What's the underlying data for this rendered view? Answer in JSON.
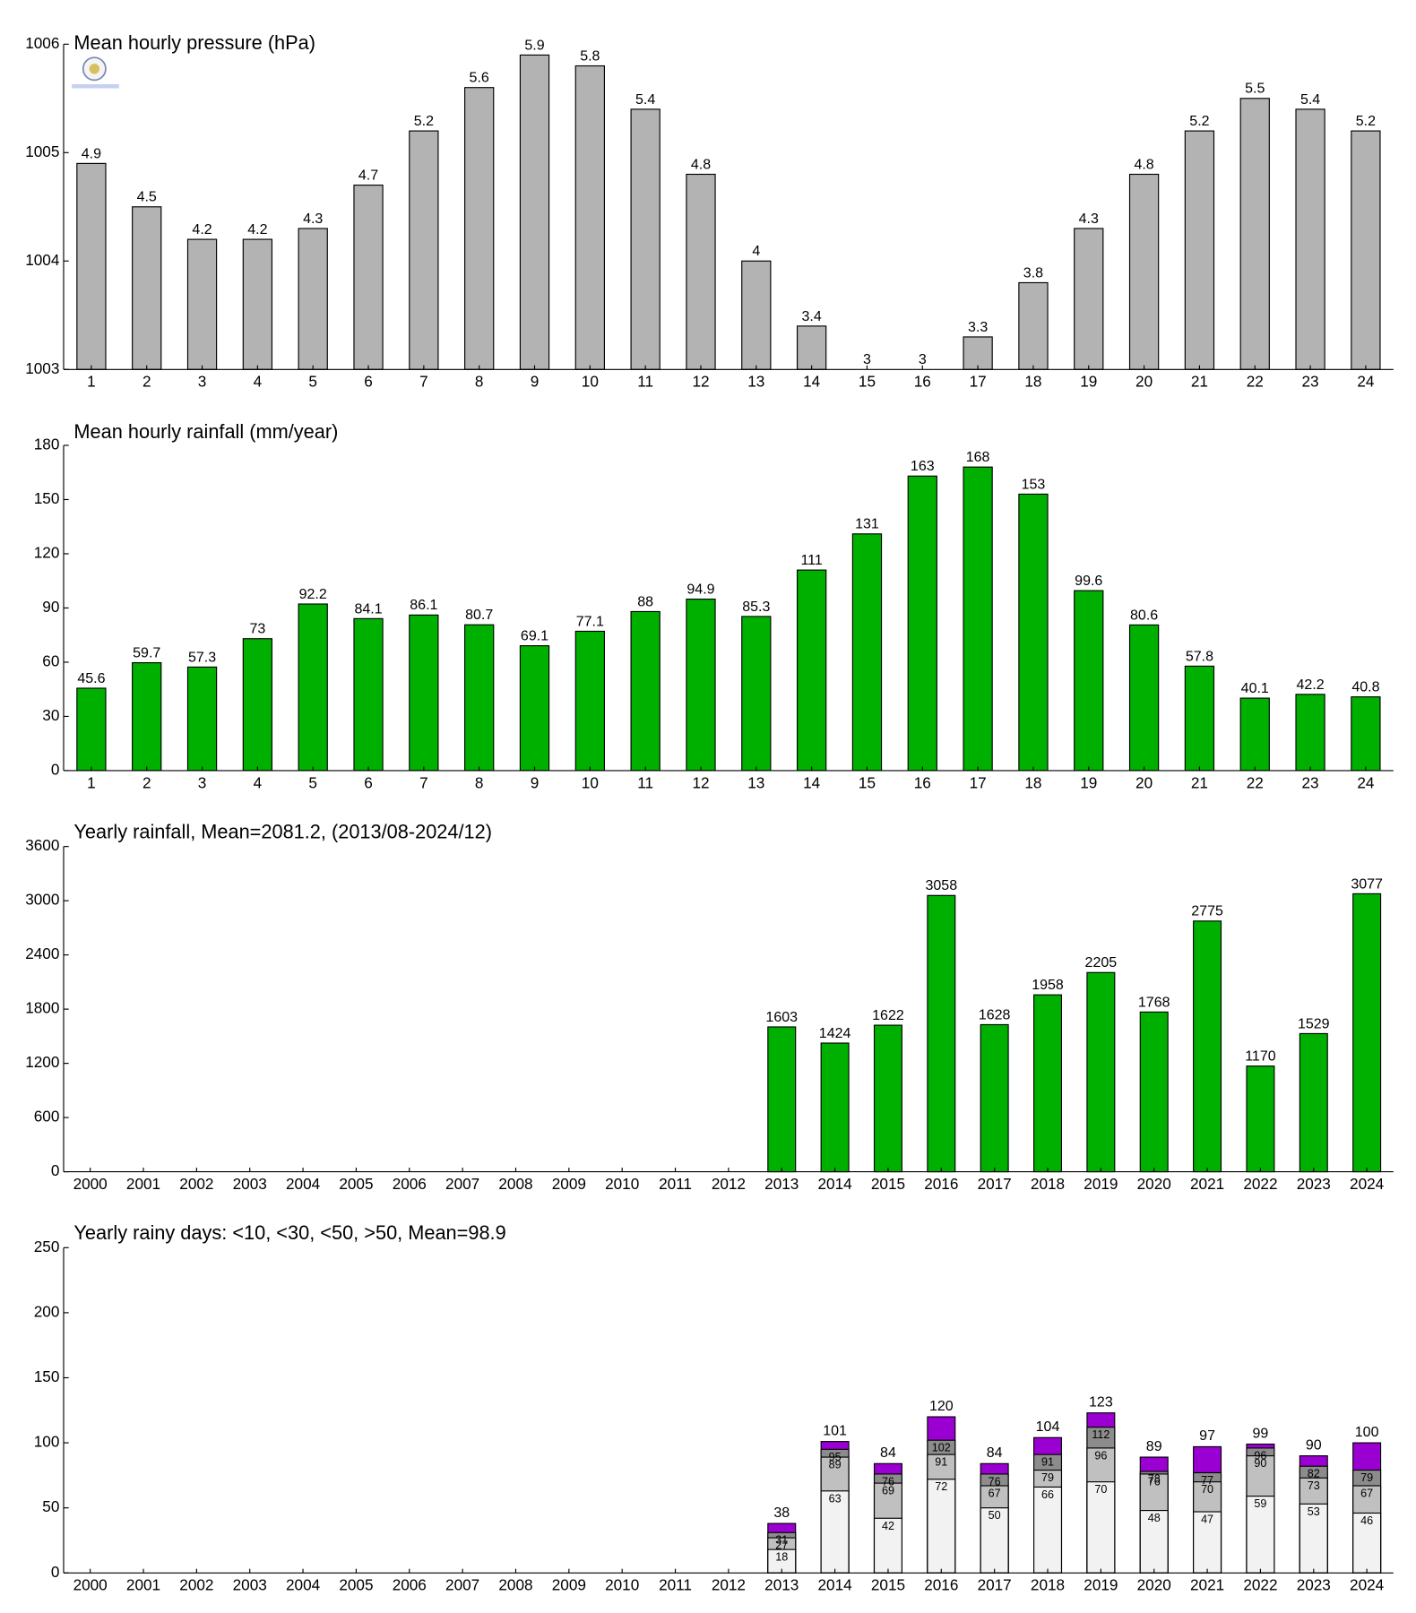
{
  "chart_data": [
    {
      "type": "bar",
      "title": "Mean hourly pressure (hPa)",
      "categories": [
        "1",
        "2",
        "3",
        "4",
        "5",
        "6",
        "7",
        "8",
        "9",
        "10",
        "11",
        "12",
        "13",
        "14",
        "15",
        "16",
        "17",
        "18",
        "19",
        "20",
        "21",
        "22",
        "23",
        "24"
      ],
      "values": [
        1004.9,
        1004.5,
        1004.2,
        1004.2,
        1004.3,
        1004.7,
        1005.2,
        1005.6,
        1005.9,
        1005.8,
        1005.4,
        1004.8,
        1004.0,
        1003.4,
        1003.0,
        1003.0,
        1003.3,
        1003.8,
        1004.3,
        1004.8,
        1005.2,
        1005.5,
        1005.4,
        1005.2
      ],
      "value_labels": [
        "4.9",
        "4.5",
        "4.2",
        "4.2",
        "4.3",
        "4.7",
        "5.2",
        "5.6",
        "5.9",
        "5.8",
        "5.4",
        "4.8",
        "4",
        "3.4",
        "3",
        "3",
        "3.3",
        "3.8",
        "4.3",
        "4.8",
        "5.2",
        "5.5",
        "5.4",
        "5.2"
      ],
      "color": "#b3b3b3",
      "ylim": [
        1003,
        1006
      ],
      "yticks": [
        1003,
        1004,
        1005,
        1006
      ]
    },
    {
      "type": "bar",
      "title": "Mean hourly rainfall (mm/year)",
      "categories": [
        "1",
        "2",
        "3",
        "4",
        "5",
        "6",
        "7",
        "8",
        "9",
        "10",
        "11",
        "12",
        "13",
        "14",
        "15",
        "16",
        "17",
        "18",
        "19",
        "20",
        "21",
        "22",
        "23",
        "24"
      ],
      "values": [
        45.6,
        59.7,
        57.3,
        73,
        92.2,
        84.1,
        86.1,
        80.7,
        69.1,
        77.1,
        88,
        94.9,
        85.3,
        111,
        131,
        163,
        168,
        153,
        99.6,
        80.6,
        57.8,
        40.1,
        42.2,
        40.8
      ],
      "color": "#00b000",
      "ylim": [
        0,
        180
      ],
      "yticks": [
        0,
        30,
        60,
        90,
        120,
        150,
        180
      ]
    },
    {
      "type": "bar",
      "title": "Yearly rainfall, Mean=2081.2, (2013/08-2024/12)",
      "categories": [
        "2000",
        "2001",
        "2002",
        "2003",
        "2004",
        "2005",
        "2006",
        "2007",
        "2008",
        "2009",
        "2010",
        "2011",
        "2012",
        "2013",
        "2014",
        "2015",
        "2016",
        "2017",
        "2018",
        "2019",
        "2020",
        "2021",
        "2022",
        "2023",
        "2024"
      ],
      "values": [
        null,
        null,
        null,
        null,
        null,
        null,
        null,
        null,
        null,
        null,
        null,
        null,
        null,
        1603,
        1424,
        1622,
        3058,
        1628,
        1958,
        2205,
        1768,
        2775,
        1170,
        1529,
        3077
      ],
      "color": "#00b000",
      "ylim": [
        0,
        3600
      ],
      "yticks": [
        0,
        600,
        1200,
        1800,
        2400,
        3000,
        3600
      ]
    },
    {
      "type": "overlap_bar",
      "title": "Yearly rainy days: <10, <30, <50, >50, Mean=98.9",
      "categories": [
        "2000",
        "2001",
        "2002",
        "2003",
        "2004",
        "2005",
        "2006",
        "2007",
        "2008",
        "2009",
        "2010",
        "2011",
        "2012",
        "2013",
        "2014",
        "2015",
        "2016",
        "2017",
        "2018",
        "2019",
        "2020",
        "2021",
        "2022",
        "2023",
        "2024"
      ],
      "series": [
        {
          "color": "#f2f2f2",
          "values": [
            null,
            null,
            null,
            null,
            null,
            null,
            null,
            null,
            null,
            null,
            null,
            null,
            null,
            18,
            63,
            42,
            72,
            50,
            66,
            70,
            48,
            47,
            59,
            53,
            46
          ]
        },
        {
          "color": "#c0c0c0",
          "values": [
            null,
            null,
            null,
            null,
            null,
            null,
            null,
            null,
            null,
            null,
            null,
            null,
            null,
            27,
            89,
            69,
            91,
            67,
            79,
            96,
            76,
            70,
            90,
            73,
            67
          ]
        },
        {
          "color": "#8c8c8c",
          "values": [
            null,
            null,
            null,
            null,
            null,
            null,
            null,
            null,
            null,
            null,
            null,
            null,
            null,
            31,
            95,
            76,
            102,
            76,
            91,
            112,
            78,
            77,
            96,
            82,
            79
          ]
        },
        {
          "color": "#9b00d3",
          "values": [
            null,
            null,
            null,
            null,
            null,
            null,
            null,
            null,
            null,
            null,
            null,
            null,
            null,
            38,
            101,
            84,
            120,
            84,
            104,
            123,
            89,
            97,
            99,
            90,
            100
          ]
        }
      ],
      "ylim": [
        0,
        250
      ],
      "yticks": [
        0,
        50,
        100,
        150,
        200,
        250
      ]
    }
  ]
}
